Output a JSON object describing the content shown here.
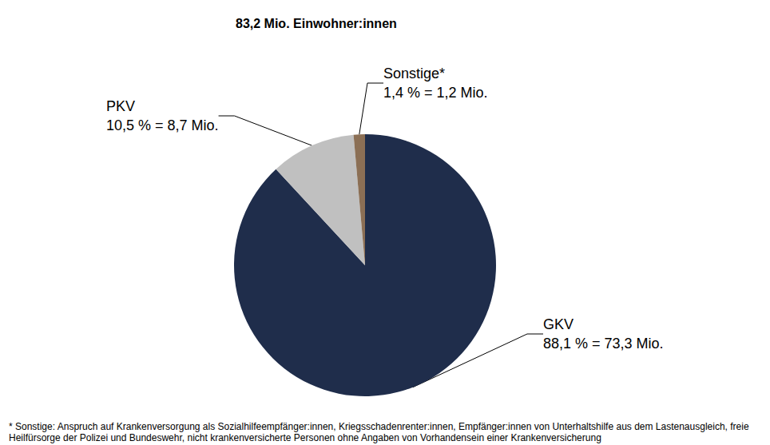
{
  "chart_data": {
    "type": "pie",
    "title": "83,2 Mio. Einwohner:innen",
    "categories": [
      "GKV",
      "PKV",
      "Sonstige*"
    ],
    "values": [
      88.1,
      10.5,
      1.4
    ],
    "value_labels": [
      "88,1 % = 73,3 Mio.",
      "10,5 % = 8,7 Mio.",
      "1,4 % = 1,2 Mio."
    ],
    "colors": [
      "#1f2d4b",
      "#c0c0c0",
      "#8b6f55"
    ],
    "data_labels": true,
    "footnote": "* Sonstige: Anspruch auf Krankenversorgung als Sozialhilfeempfänger:innen, Kriegsschadenrenter:innen, Empfänger:innen von Unterhaltshilfe aus dem Lastenausgleich, freie Heilfürsorge der Polizei und Bundeswehr, nicht krankenversicherte Personen ohne Angaben von Vorhandensein einer Krankenversicherung"
  }
}
